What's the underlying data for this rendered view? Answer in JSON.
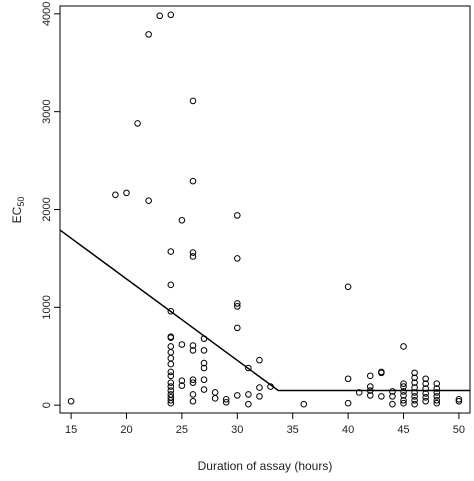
{
  "chart_data": {
    "type": "scatter",
    "title": "",
    "xlabel": "Duration of assay (hours)",
    "ylabel_main": "EC",
    "ylabel_sub": "50",
    "xlim": [
      14,
      51
    ],
    "ylim": [
      -80,
      4080
    ],
    "xticks": [
      15,
      20,
      25,
      30,
      35,
      40,
      45,
      50
    ],
    "yticks": [
      0,
      1000,
      2000,
      3000,
      4000
    ],
    "grid": false,
    "points": [
      [
        15,
        40
      ],
      [
        19,
        2150
      ],
      [
        20,
        2170
      ],
      [
        21,
        2880
      ],
      [
        22,
        3790
      ],
      [
        22,
        2090
      ],
      [
        23,
        3980
      ],
      [
        24,
        3990
      ],
      [
        24,
        1570
      ],
      [
        24,
        1230
      ],
      [
        24,
        960
      ],
      [
        24,
        700
      ],
      [
        24,
        690
      ],
      [
        24,
        600
      ],
      [
        24,
        540
      ],
      [
        24,
        480
      ],
      [
        24,
        420
      ],
      [
        24,
        340
      ],
      [
        24,
        300
      ],
      [
        24,
        230
      ],
      [
        24,
        190
      ],
      [
        24,
        150
      ],
      [
        24,
        110
      ],
      [
        24,
        80
      ],
      [
        24,
        50
      ],
      [
        24,
        20
      ],
      [
        25,
        1890
      ],
      [
        25,
        620
      ],
      [
        25,
        250
      ],
      [
        25,
        200
      ],
      [
        26,
        3110
      ],
      [
        26,
        2290
      ],
      [
        26,
        1560
      ],
      [
        26,
        1520
      ],
      [
        26,
        610
      ],
      [
        26,
        560
      ],
      [
        26,
        260
      ],
      [
        26,
        230
      ],
      [
        26,
        110
      ],
      [
        26,
        40
      ],
      [
        27,
        680
      ],
      [
        27,
        560
      ],
      [
        27,
        430
      ],
      [
        27,
        380
      ],
      [
        27,
        260
      ],
      [
        27,
        160
      ],
      [
        28,
        130
      ],
      [
        28,
        70
      ],
      [
        29,
        60
      ],
      [
        29,
        30
      ],
      [
        30,
        1940
      ],
      [
        30,
        1500
      ],
      [
        30,
        1040
      ],
      [
        30,
        1010
      ],
      [
        30,
        790
      ],
      [
        30,
        100
      ],
      [
        31,
        380
      ],
      [
        31,
        110
      ],
      [
        31,
        10
      ],
      [
        32,
        460
      ],
      [
        32,
        180
      ],
      [
        32,
        90
      ],
      [
        33,
        190
      ],
      [
        36,
        10
      ],
      [
        40,
        1210
      ],
      [
        40,
        270
      ],
      [
        40,
        20
      ],
      [
        41,
        130
      ],
      [
        42,
        300
      ],
      [
        42,
        190
      ],
      [
        42,
        150
      ],
      [
        42,
        100
      ],
      [
        43,
        340
      ],
      [
        43,
        330
      ],
      [
        43,
        90
      ],
      [
        44,
        140
      ],
      [
        44,
        90
      ],
      [
        44,
        10
      ],
      [
        45,
        600
      ],
      [
        45,
        220
      ],
      [
        45,
        190
      ],
      [
        45,
        140
      ],
      [
        45,
        100
      ],
      [
        45,
        50
      ],
      [
        45,
        20
      ],
      [
        46,
        330
      ],
      [
        46,
        280
      ],
      [
        46,
        230
      ],
      [
        46,
        180
      ],
      [
        46,
        130
      ],
      [
        46,
        90
      ],
      [
        46,
        50
      ],
      [
        46,
        10
      ],
      [
        47,
        270
      ],
      [
        47,
        220
      ],
      [
        47,
        170
      ],
      [
        47,
        120
      ],
      [
        47,
        80
      ],
      [
        47,
        40
      ],
      [
        48,
        220
      ],
      [
        48,
        170
      ],
      [
        48,
        130
      ],
      [
        48,
        90
      ],
      [
        48,
        50
      ],
      [
        48,
        20
      ],
      [
        50,
        60
      ],
      [
        50,
        40
      ]
    ],
    "fit_line": [
      [
        14,
        1790
      ],
      [
        33.7,
        150
      ],
      [
        51,
        150
      ]
    ]
  }
}
